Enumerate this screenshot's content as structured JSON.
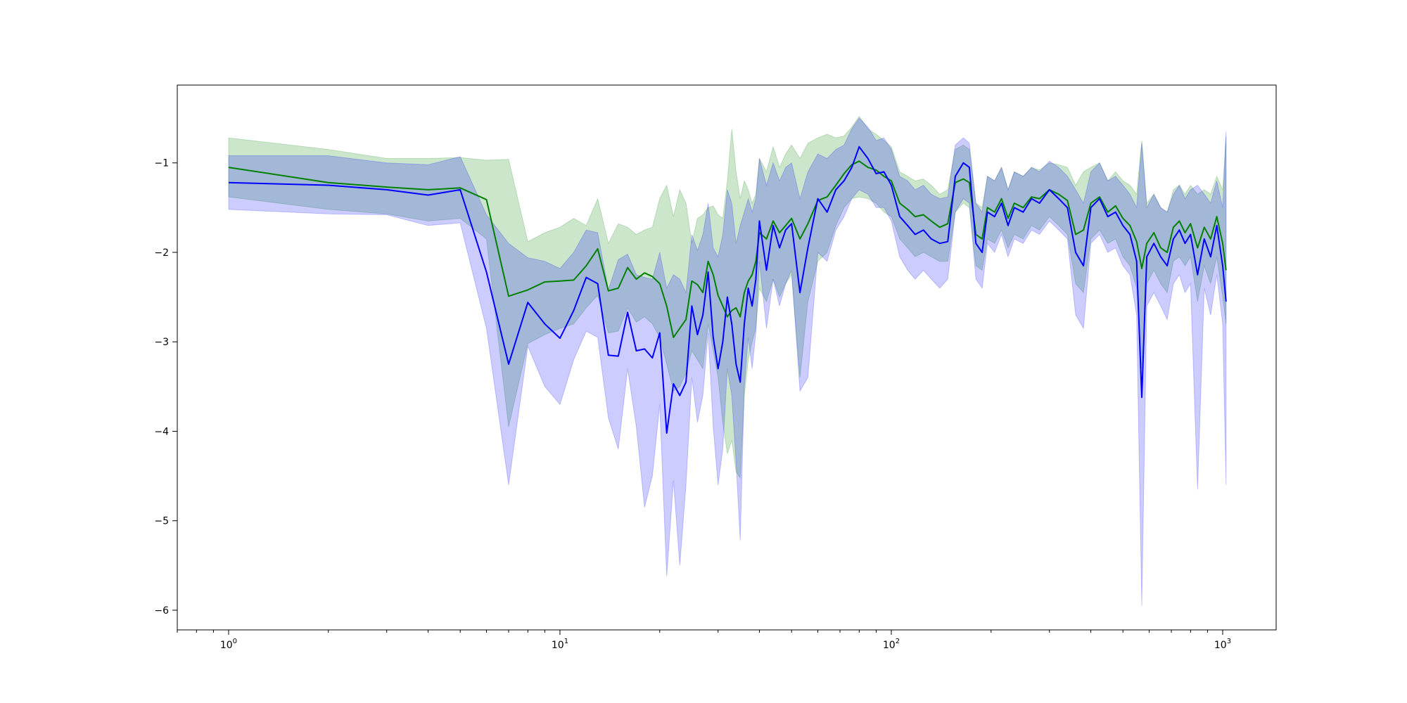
{
  "chart_data": {
    "type": "line",
    "title": "",
    "xlabel": "",
    "ylabel": "",
    "x_scale": "log",
    "xlim": [
      0.7,
      1450
    ],
    "ylim": [
      -6.22,
      -0.13
    ],
    "grid": false,
    "x_ticks": [
      {
        "value": 1,
        "base": "10",
        "exp": "0"
      },
      {
        "value": 10,
        "base": "10",
        "exp": "1"
      },
      {
        "value": 100,
        "base": "10",
        "exp": "2"
      },
      {
        "value": 1000,
        "base": "10",
        "exp": "3"
      }
    ],
    "y_ticks": [
      {
        "value": -1,
        "label": "−1"
      },
      {
        "value": -2,
        "label": "−2"
      },
      {
        "value": -3,
        "label": "−3"
      },
      {
        "value": -4,
        "label": "−4"
      },
      {
        "value": -5,
        "label": "−5"
      },
      {
        "value": -6,
        "label": "−6"
      }
    ],
    "series": [
      {
        "color": "#008000",
        "band_color": "#008000",
        "band_opacity": 0.2,
        "x": [
          1,
          2,
          3,
          4,
          5,
          6,
          7,
          8,
          9,
          10,
          11,
          12,
          13,
          14,
          15,
          16,
          17,
          18,
          19,
          20,
          21,
          22,
          23,
          24,
          25,
          26,
          27,
          28,
          29,
          30,
          31,
          32,
          33,
          34,
          35,
          36,
          37,
          38,
          39,
          40,
          42,
          44,
          46,
          48,
          50,
          53,
          56,
          60,
          64,
          68,
          72,
          76,
          80,
          85,
          90,
          95,
          100,
          106,
          112,
          118,
          125,
          132,
          140,
          148,
          156,
          165,
          172,
          180,
          188,
          195,
          205,
          215,
          225,
          235,
          250,
          265,
          280,
          300,
          320,
          340,
          360,
          380,
          400,
          425,
          450,
          475,
          500,
          525,
          550,
          570,
          590,
          620,
          650,
          680,
          710,
          740,
          770,
          800,
          840,
          880,
          920,
          960,
          1000,
          1024
        ],
        "y": [
          -1.05,
          -1.22,
          -1.27,
          -1.3,
          -1.28,
          -1.41,
          -2.49,
          -2.42,
          -2.33,
          -2.32,
          -2.31,
          -2.15,
          -1.96,
          -2.43,
          -2.4,
          -2.17,
          -2.3,
          -2.23,
          -2.27,
          -2.35,
          -2.6,
          -2.95,
          -2.85,
          -2.75,
          -2.32,
          -2.36,
          -2.45,
          -2.1,
          -2.25,
          -2.48,
          -2.6,
          -2.72,
          -2.65,
          -2.62,
          -2.72,
          -2.45,
          -2.32,
          -2.25,
          -2.1,
          -1.78,
          -1.85,
          -1.65,
          -1.78,
          -1.7,
          -1.62,
          -1.85,
          -1.68,
          -1.42,
          -1.38,
          -1.25,
          -1.12,
          -1.02,
          -0.98,
          -1.05,
          -1.08,
          -1.15,
          -1.2,
          -1.45,
          -1.52,
          -1.6,
          -1.58,
          -1.65,
          -1.72,
          -1.68,
          -1.22,
          -1.18,
          -1.22,
          -1.8,
          -1.85,
          -1.5,
          -1.55,
          -1.4,
          -1.62,
          -1.45,
          -1.5,
          -1.38,
          -1.4,
          -1.3,
          -1.35,
          -1.42,
          -1.8,
          -1.75,
          -1.45,
          -1.38,
          -1.55,
          -1.48,
          -1.62,
          -1.7,
          -1.88,
          -2.18,
          -1.9,
          -1.78,
          -1.95,
          -2.0,
          -1.72,
          -1.65,
          -1.78,
          -1.68,
          -1.95,
          -1.72,
          -1.85,
          -1.6,
          -1.9,
          -2.2
        ],
        "lower": [
          -1.38,
          -1.52,
          -1.57,
          -1.65,
          -1.62,
          -1.85,
          -3.95,
          -3.02,
          -2.92,
          -2.85,
          -2.8,
          -2.62,
          -2.48,
          -2.9,
          -2.88,
          -2.62,
          -2.78,
          -2.72,
          -2.8,
          -2.95,
          -3.25,
          -3.55,
          -3.5,
          -3.35,
          -3.1,
          -3.2,
          -3.3,
          -2.8,
          -3.1,
          -3.4,
          -3.9,
          -4.25,
          -4.1,
          -4.45,
          -4.52,
          -3.6,
          -3.2,
          -3.0,
          -2.85,
          -2.4,
          -2.55,
          -2.3,
          -2.5,
          -2.35,
          -2.25,
          -3.4,
          -2.55,
          -2.1,
          -2.0,
          -1.7,
          -1.5,
          -1.4,
          -1.38,
          -1.4,
          -1.45,
          -1.55,
          -1.6,
          -1.85,
          -1.95,
          -2.05,
          -2.0,
          -2.05,
          -2.1,
          -2.1,
          -1.55,
          -1.45,
          -1.5,
          -2.15,
          -2.2,
          -1.85,
          -1.9,
          -1.75,
          -1.95,
          -1.8,
          -1.85,
          -1.7,
          -1.75,
          -1.6,
          -1.7,
          -1.8,
          -2.35,
          -2.45,
          -1.85,
          -1.75,
          -1.9,
          -1.85,
          -2.05,
          -2.15,
          -2.4,
          -3.3,
          -2.35,
          -2.2,
          -2.35,
          -2.45,
          -2.1,
          -2.05,
          -2.15,
          -2.05,
          -2.55,
          -2.15,
          -2.35,
          -2.05,
          -2.5,
          -2.8
        ],
        "upper": [
          -0.72,
          -0.85,
          -0.95,
          -0.95,
          -0.94,
          -0.97,
          -0.96,
          -1.88,
          -1.78,
          -1.72,
          -1.62,
          -1.7,
          -1.4,
          -1.9,
          -1.68,
          -1.72,
          -1.8,
          -1.75,
          -1.72,
          -1.4,
          -1.25,
          -1.6,
          -1.3,
          -1.45,
          -1.9,
          -1.62,
          -1.58,
          -1.5,
          -1.48,
          -1.58,
          -1.62,
          -1.2,
          -0.62,
          -1.1,
          -1.4,
          -1.2,
          -1.3,
          -1.45,
          -1.35,
          -0.95,
          -1.1,
          -0.82,
          -1.05,
          -0.9,
          -0.8,
          -0.95,
          -0.78,
          -0.72,
          -0.68,
          -0.72,
          -0.7,
          -0.6,
          -0.48,
          -0.62,
          -0.68,
          -0.75,
          -0.82,
          -1.1,
          -1.15,
          -1.2,
          -1.18,
          -1.25,
          -1.35,
          -1.3,
          -0.85,
          -0.8,
          -0.85,
          -1.45,
          -1.5,
          -1.15,
          -1.2,
          -1.05,
          -1.3,
          -1.1,
          -1.15,
          -1.05,
          -1.08,
          -1.0,
          -1.02,
          -1.05,
          -1.25,
          -1.1,
          -1.05,
          -1.0,
          -1.2,
          -1.1,
          -1.2,
          -1.25,
          -1.35,
          -0.75,
          -1.45,
          -1.35,
          -1.5,
          -1.55,
          -1.3,
          -1.25,
          -1.35,
          -1.25,
          -1.35,
          -1.3,
          -1.35,
          -1.15,
          -1.3,
          -0.7
        ]
      },
      {
        "color": "#0000ff",
        "band_color": "#0000ff",
        "band_opacity": 0.2,
        "x": [
          1,
          2,
          3,
          4,
          5,
          6,
          7,
          8,
          9,
          10,
          11,
          12,
          13,
          14,
          15,
          16,
          17,
          18,
          19,
          20,
          21,
          22,
          23,
          24,
          25,
          26,
          27,
          28,
          29,
          30,
          31,
          32,
          33,
          34,
          35,
          36,
          37,
          38,
          39,
          40,
          42,
          44,
          46,
          48,
          50,
          53,
          56,
          60,
          64,
          68,
          72,
          76,
          80,
          85,
          90,
          95,
          100,
          106,
          112,
          118,
          125,
          132,
          140,
          148,
          156,
          165,
          172,
          180,
          188,
          195,
          205,
          215,
          225,
          235,
          250,
          265,
          280,
          300,
          320,
          340,
          360,
          380,
          400,
          425,
          450,
          475,
          500,
          525,
          550,
          570,
          590,
          620,
          650,
          680,
          710,
          740,
          770,
          800,
          840,
          880,
          920,
          960,
          1000,
          1024
        ],
        "y": [
          -1.22,
          -1.25,
          -1.3,
          -1.36,
          -1.3,
          -2.22,
          -3.25,
          -2.56,
          -2.8,
          -2.96,
          -2.65,
          -2.28,
          -2.35,
          -3.15,
          -3.16,
          -2.67,
          -3.1,
          -3.08,
          -3.18,
          -2.9,
          -4.02,
          -3.47,
          -3.6,
          -3.45,
          -2.6,
          -2.92,
          -2.7,
          -2.22,
          -2.95,
          -3.3,
          -3.0,
          -2.5,
          -2.8,
          -3.25,
          -3.45,
          -2.8,
          -2.4,
          -2.6,
          -2.3,
          -1.65,
          -2.2,
          -1.7,
          -1.95,
          -1.75,
          -1.68,
          -2.45,
          -1.95,
          -1.4,
          -1.55,
          -1.3,
          -1.2,
          -1.05,
          -0.82,
          -0.95,
          -1.12,
          -1.1,
          -1.25,
          -1.6,
          -1.7,
          -1.8,
          -1.75,
          -1.85,
          -1.9,
          -1.88,
          -1.15,
          -1.0,
          -1.05,
          -1.9,
          -2.0,
          -1.55,
          -1.6,
          -1.45,
          -1.7,
          -1.5,
          -1.55,
          -1.4,
          -1.45,
          -1.3,
          -1.4,
          -1.5,
          -2.0,
          -2.15,
          -1.5,
          -1.4,
          -1.6,
          -1.55,
          -1.7,
          -1.8,
          -2.1,
          -3.62,
          -2.05,
          -1.9,
          -2.05,
          -2.15,
          -1.85,
          -1.75,
          -1.9,
          -1.8,
          -2.25,
          -1.85,
          -2.05,
          -1.7,
          -2.15,
          -2.55
        ],
        "lower": [
          -1.52,
          -1.57,
          -1.58,
          -1.7,
          -1.67,
          -2.85,
          -4.6,
          -3.05,
          -3.5,
          -3.7,
          -3.2,
          -2.88,
          -2.95,
          -3.85,
          -4.2,
          -3.3,
          -3.95,
          -4.85,
          -4.5,
          -3.7,
          -5.62,
          -4.55,
          -5.5,
          -4.6,
          -3.4,
          -3.9,
          -3.6,
          -2.9,
          -3.95,
          -4.6,
          -4.2,
          -3.3,
          -3.6,
          -4.35,
          -5.22,
          -3.5,
          -2.95,
          -3.3,
          -2.9,
          -2.1,
          -2.85,
          -2.3,
          -2.6,
          -2.35,
          -2.2,
          -3.55,
          -3.4,
          -2.0,
          -2.1,
          -1.75,
          -1.6,
          -1.4,
          -1.3,
          -1.35,
          -1.5,
          -1.5,
          -1.65,
          -2.05,
          -2.2,
          -2.3,
          -2.2,
          -2.3,
          -2.4,
          -2.3,
          -1.55,
          -1.4,
          -1.45,
          -2.3,
          -2.4,
          -1.9,
          -2.0,
          -1.8,
          -2.05,
          -1.85,
          -1.9,
          -1.75,
          -1.8,
          -1.65,
          -1.75,
          -1.85,
          -2.7,
          -2.85,
          -1.9,
          -1.8,
          -2.0,
          -1.95,
          -2.15,
          -2.25,
          -2.7,
          -5.95,
          -2.6,
          -2.45,
          -2.6,
          -2.75,
          -2.35,
          -2.25,
          -2.45,
          -2.35,
          -4.65,
          -2.4,
          -2.7,
          -2.25,
          -2.8,
          -4.6
        ],
        "upper": [
          -0.92,
          -0.92,
          -1.0,
          -1.02,
          -0.93,
          -1.58,
          -1.9,
          -2.06,
          -2.1,
          -2.18,
          -2.0,
          -1.75,
          -1.78,
          -2.42,
          -2.08,
          -2.02,
          -2.25,
          -2.28,
          -2.3,
          -2.0,
          -2.4,
          -2.25,
          -2.3,
          -2.45,
          -1.8,
          -1.98,
          -1.8,
          -1.45,
          -1.95,
          -2.05,
          -1.8,
          -1.3,
          -1.45,
          -1.9,
          -1.7,
          -1.55,
          -1.4,
          -1.55,
          -1.4,
          -0.95,
          -1.25,
          -1.0,
          -1.2,
          -1.05,
          -1.0,
          -1.4,
          -1.1,
          -0.9,
          -0.95,
          -0.85,
          -0.8,
          -0.62,
          -0.5,
          -0.6,
          -0.75,
          -0.72,
          -0.85,
          -1.15,
          -1.2,
          -1.3,
          -1.25,
          -1.35,
          -1.4,
          -1.38,
          -0.8,
          -0.72,
          -0.78,
          -1.45,
          -1.55,
          -1.15,
          -1.2,
          -1.05,
          -1.3,
          -1.1,
          -1.15,
          -1.05,
          -1.1,
          -0.98,
          -1.05,
          -1.15,
          -1.3,
          -1.45,
          -1.1,
          -1.0,
          -1.2,
          -1.15,
          -1.25,
          -1.35,
          -1.5,
          -0.78,
          -1.5,
          -1.35,
          -1.5,
          -1.55,
          -1.35,
          -1.25,
          -1.4,
          -1.3,
          -1.25,
          -1.35,
          -1.45,
          -1.2,
          -1.5,
          -0.65
        ]
      }
    ]
  }
}
